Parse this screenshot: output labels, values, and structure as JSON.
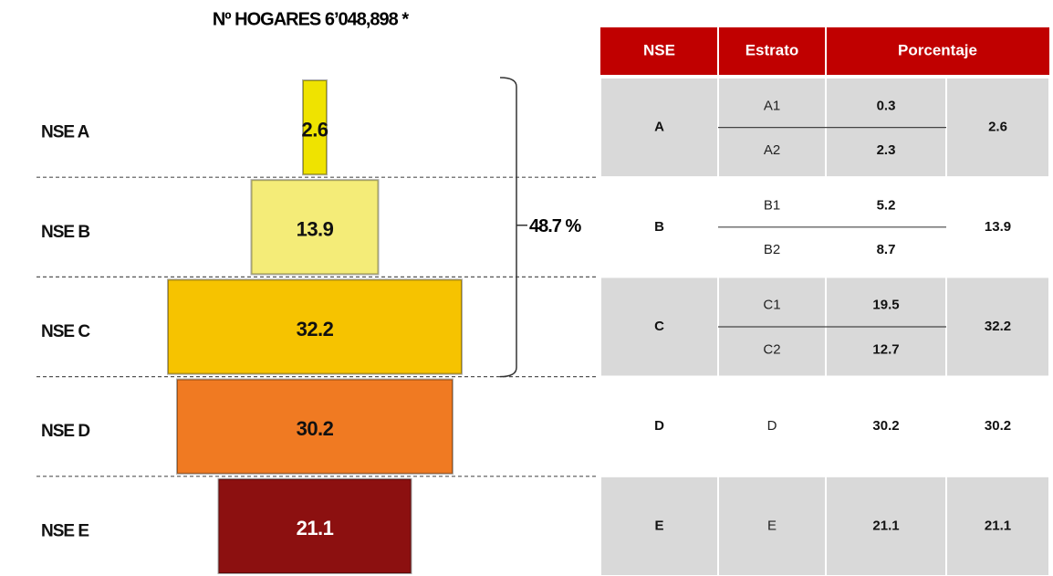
{
  "chart_data": {
    "type": "pyramid",
    "title": "Nº HOGARES 6’048,898 *",
    "categories": [
      "NSE A",
      "NSE B",
      "NSE C",
      "NSE D",
      "NSE E"
    ],
    "values": [
      2.6,
      13.9,
      32.2,
      30.2,
      21.1
    ],
    "colors": [
      "#efe300",
      "#f4ec78",
      "#f6c300",
      "#f07a22",
      "#8c1010"
    ],
    "annotation": "48.7 %"
  },
  "table": {
    "header": [
      "NSE",
      "Estrato",
      "Porcentaje"
    ],
    "rows": [
      {
        "nse": "A",
        "total": 2.6,
        "strata": [
          {
            "name": "A1",
            "value": 0.3
          },
          {
            "name": "A2",
            "value": 2.3
          }
        ]
      },
      {
        "nse": "B",
        "total": 13.9,
        "strata": [
          {
            "name": "B1",
            "value": 5.2
          },
          {
            "name": "B2",
            "value": 8.7
          }
        ]
      },
      {
        "nse": "C",
        "total": 32.2,
        "strata": [
          {
            "name": "C1",
            "value": 19.5
          },
          {
            "name": "C2",
            "value": 12.7
          }
        ]
      },
      {
        "nse": "D",
        "total": 30.2,
        "strata": [
          {
            "name": "D",
            "value": 30.2
          }
        ]
      },
      {
        "nse": "E",
        "total": 21.1,
        "strata": [
          {
            "name": "E",
            "value": 21.1
          }
        ]
      }
    ]
  }
}
